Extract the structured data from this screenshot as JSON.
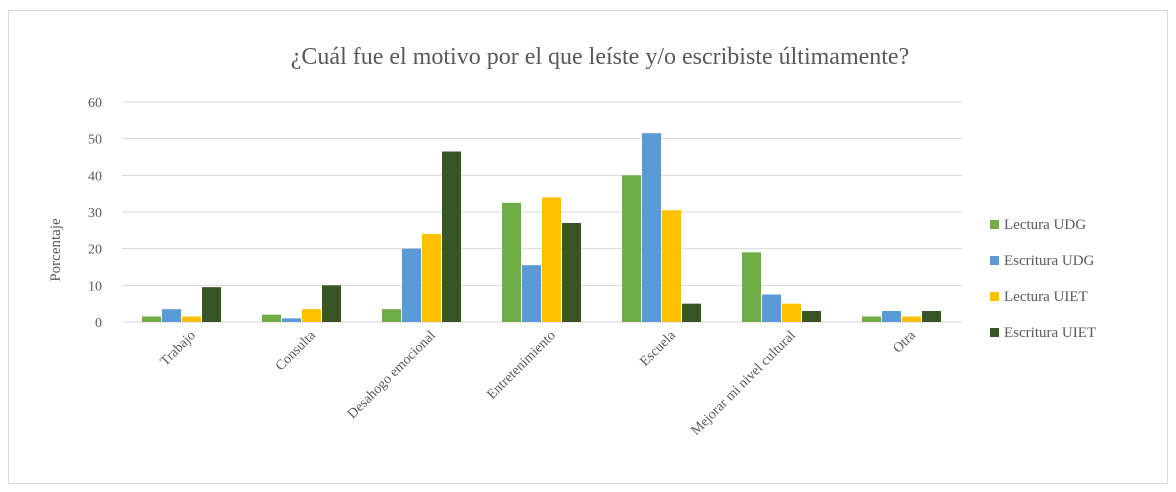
{
  "chart_data": {
    "type": "bar",
    "title": "¿Cuál fue el motivo por el que leíste y/o escribiste últimamente?",
    "xlabel": "",
    "ylabel": "Porcentaje",
    "ylim": [
      0,
      60
    ],
    "yticks": [
      0,
      10,
      20,
      30,
      40,
      50,
      60
    ],
    "grid": true,
    "legend_position": "right",
    "categories": [
      "Trabajo",
      "Consulta",
      "Desahogo emocional",
      "Entretenimiento",
      "Escuela",
      "Mejorar mi nivel cultural",
      "Otra"
    ],
    "series": [
      {
        "name": "Lectura UDG",
        "color": "#70ad47",
        "values": [
          1.5,
          2,
          3.5,
          32.5,
          40,
          19,
          1.5
        ]
      },
      {
        "name": "Escritura UDG",
        "color": "#5b9bd5",
        "values": [
          3.5,
          1,
          20,
          15.5,
          51.5,
          7.5,
          3
        ]
      },
      {
        "name": "Lectura UIET",
        "color": "#ffc000",
        "values": [
          1.5,
          3.5,
          24,
          34,
          30.5,
          5,
          1.5
        ]
      },
      {
        "name": "Escritura UIET",
        "color": "#375623",
        "values": [
          9.5,
          10,
          46.5,
          27,
          5,
          3,
          3
        ]
      }
    ]
  }
}
